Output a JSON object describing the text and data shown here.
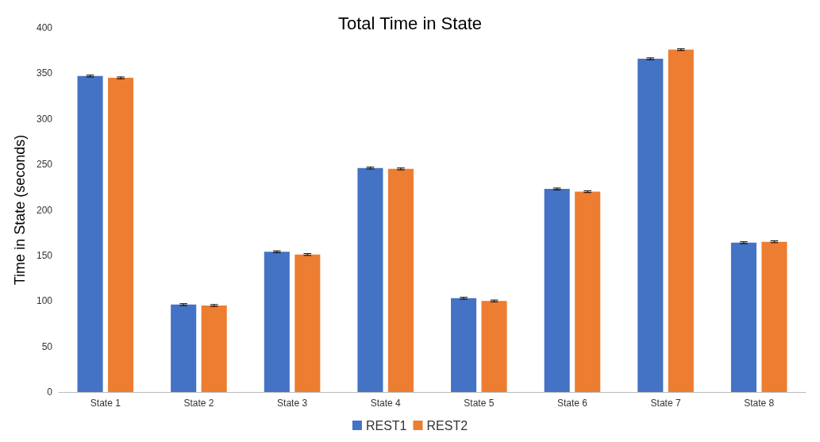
{
  "chart_data": {
    "type": "bar",
    "title": "Total Time in State",
    "ylabel": "Time in State (seconds)",
    "categories": [
      "State 1",
      "State 2",
      "State 3",
      "State 4",
      "State 5",
      "State 6",
      "State 7",
      "State 8"
    ],
    "series": [
      {
        "name": "REST1",
        "color": "#4472c4",
        "values": [
          347,
          96,
          154,
          246,
          103,
          223,
          366,
          164
        ],
        "errors": [
          1,
          1,
          1,
          1,
          1,
          1,
          1,
          1
        ]
      },
      {
        "name": "REST2",
        "color": "#ed7d31",
        "values": [
          345,
          95,
          151,
          245,
          100,
          220,
          376,
          165
        ],
        "errors": [
          1,
          1,
          1,
          1,
          1,
          1,
          1,
          1
        ]
      }
    ],
    "ylim": [
      0,
      400
    ],
    "yticks": [
      0,
      50,
      100,
      150,
      200,
      250,
      300,
      350,
      400
    ],
    "grid": false,
    "legend": "bottom"
  }
}
